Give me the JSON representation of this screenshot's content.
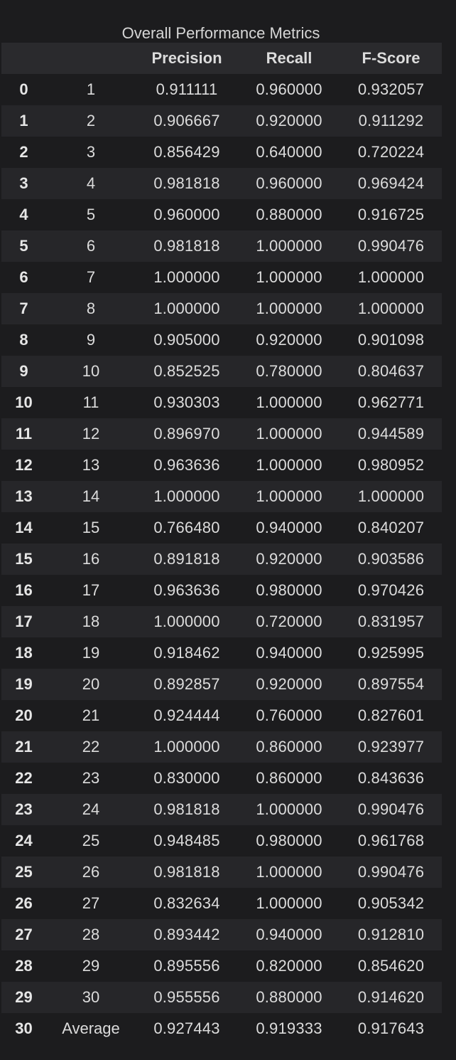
{
  "caption": "Overall Performance Metrics",
  "columns": [
    "",
    "",
    "Precision",
    "Recall",
    "F-Score"
  ],
  "rows": [
    {
      "index": "0",
      "label": "1",
      "precision": "0.911111",
      "recall": "0.960000",
      "fscore": "0.932057"
    },
    {
      "index": "1",
      "label": "2",
      "precision": "0.906667",
      "recall": "0.920000",
      "fscore": "0.911292"
    },
    {
      "index": "2",
      "label": "3",
      "precision": "0.856429",
      "recall": "0.640000",
      "fscore": "0.720224"
    },
    {
      "index": "3",
      "label": "4",
      "precision": "0.981818",
      "recall": "0.960000",
      "fscore": "0.969424"
    },
    {
      "index": "4",
      "label": "5",
      "precision": "0.960000",
      "recall": "0.880000",
      "fscore": "0.916725"
    },
    {
      "index": "5",
      "label": "6",
      "precision": "0.981818",
      "recall": "1.000000",
      "fscore": "0.990476"
    },
    {
      "index": "6",
      "label": "7",
      "precision": "1.000000",
      "recall": "1.000000",
      "fscore": "1.000000"
    },
    {
      "index": "7",
      "label": "8",
      "precision": "1.000000",
      "recall": "1.000000",
      "fscore": "1.000000"
    },
    {
      "index": "8",
      "label": "9",
      "precision": "0.905000",
      "recall": "0.920000",
      "fscore": "0.901098"
    },
    {
      "index": "9",
      "label": "10",
      "precision": "0.852525",
      "recall": "0.780000",
      "fscore": "0.804637"
    },
    {
      "index": "10",
      "label": "11",
      "precision": "0.930303",
      "recall": "1.000000",
      "fscore": "0.962771"
    },
    {
      "index": "11",
      "label": "12",
      "precision": "0.896970",
      "recall": "1.000000",
      "fscore": "0.944589"
    },
    {
      "index": "12",
      "label": "13",
      "precision": "0.963636",
      "recall": "1.000000",
      "fscore": "0.980952"
    },
    {
      "index": "13",
      "label": "14",
      "precision": "1.000000",
      "recall": "1.000000",
      "fscore": "1.000000"
    },
    {
      "index": "14",
      "label": "15",
      "precision": "0.766480",
      "recall": "0.940000",
      "fscore": "0.840207"
    },
    {
      "index": "15",
      "label": "16",
      "precision": "0.891818",
      "recall": "0.920000",
      "fscore": "0.903586"
    },
    {
      "index": "16",
      "label": "17",
      "precision": "0.963636",
      "recall": "0.980000",
      "fscore": "0.970426"
    },
    {
      "index": "17",
      "label": "18",
      "precision": "1.000000",
      "recall": "0.720000",
      "fscore": "0.831957"
    },
    {
      "index": "18",
      "label": "19",
      "precision": "0.918462",
      "recall": "0.940000",
      "fscore": "0.925995"
    },
    {
      "index": "19",
      "label": "20",
      "precision": "0.892857",
      "recall": "0.920000",
      "fscore": "0.897554"
    },
    {
      "index": "20",
      "label": "21",
      "precision": "0.924444",
      "recall": "0.760000",
      "fscore": "0.827601"
    },
    {
      "index": "21",
      "label": "22",
      "precision": "1.000000",
      "recall": "0.860000",
      "fscore": "0.923977"
    },
    {
      "index": "22",
      "label": "23",
      "precision": "0.830000",
      "recall": "0.860000",
      "fscore": "0.843636"
    },
    {
      "index": "23",
      "label": "24",
      "precision": "0.981818",
      "recall": "1.000000",
      "fscore": "0.990476"
    },
    {
      "index": "24",
      "label": "25",
      "precision": "0.948485",
      "recall": "0.980000",
      "fscore": "0.961768"
    },
    {
      "index": "25",
      "label": "26",
      "precision": "0.981818",
      "recall": "1.000000",
      "fscore": "0.990476"
    },
    {
      "index": "26",
      "label": "27",
      "precision": "0.832634",
      "recall": "1.000000",
      "fscore": "0.905342"
    },
    {
      "index": "27",
      "label": "28",
      "precision": "0.893442",
      "recall": "0.940000",
      "fscore": "0.912810"
    },
    {
      "index": "28",
      "label": "29",
      "precision": "0.895556",
      "recall": "0.820000",
      "fscore": "0.854620"
    },
    {
      "index": "29",
      "label": "30",
      "precision": "0.955556",
      "recall": "0.880000",
      "fscore": "0.914620"
    },
    {
      "index": "30",
      "label": "Average",
      "precision": "0.927443",
      "recall": "0.919333",
      "fscore": "0.917643"
    }
  ]
}
